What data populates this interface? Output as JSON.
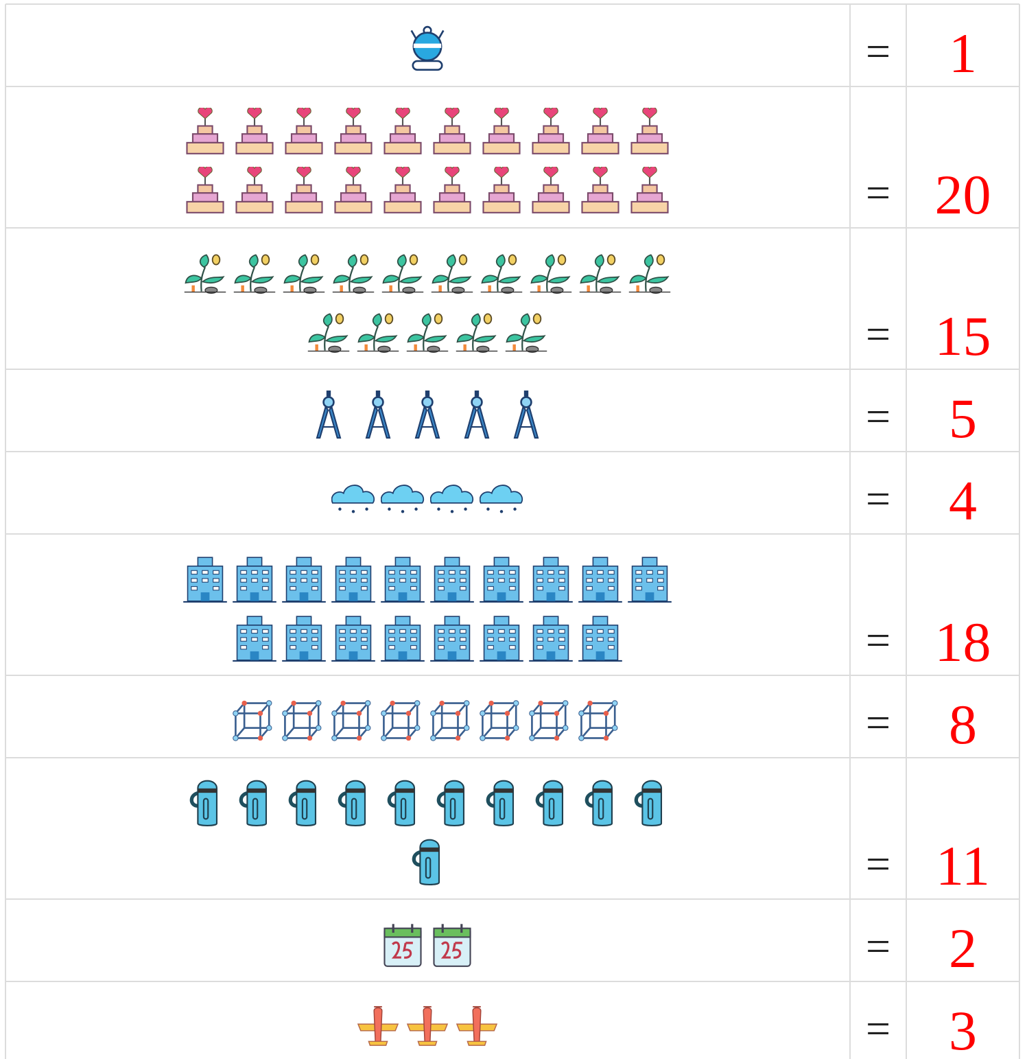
{
  "rows": [
    {
      "sign": "=",
      "value": 1
    },
    {
      "sign": "=",
      "value": 20
    },
    {
      "sign": "=",
      "value": 15
    },
    {
      "sign": "=",
      "value": 5
    },
    {
      "sign": "=",
      "value": 4
    },
    {
      "sign": "=",
      "value": 18
    },
    {
      "sign": "=",
      "value": 8
    },
    {
      "sign": "=",
      "value": 11
    },
    {
      "sign": "=",
      "value": 2
    },
    {
      "sign": "=",
      "value": 3
    }
  ]
}
